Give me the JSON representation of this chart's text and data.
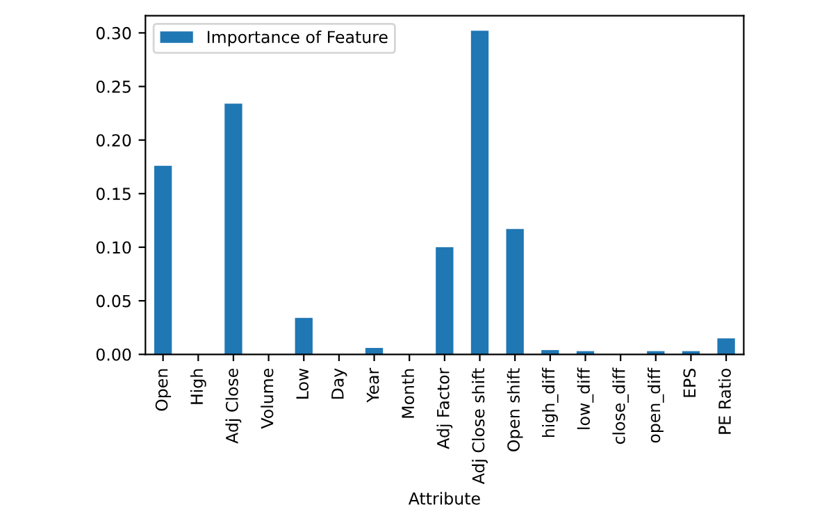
{
  "chart_data": {
    "type": "bar",
    "xlabel": "Attribute",
    "categories": [
      "Open",
      "High",
      "Adj Close",
      "Volume",
      "Low",
      "Day",
      "Year",
      "Month",
      "Adj Factor",
      "Adj Close shift",
      "Open shift",
      "high_diff",
      "low_diff",
      "close_diff",
      "open_diff",
      "EPS",
      "PE Ratio"
    ],
    "series": [
      {
        "name": "Importance of Feature",
        "color": "#1f77b4",
        "values": [
          0.176,
          0,
          0.234,
          0,
          0.034,
          0,
          0.006,
          0,
          0.1,
          0.302,
          0.117,
          0.004,
          0.003,
          0,
          0.003,
          0.003,
          0.015
        ]
      }
    ],
    "ylim": [
      0,
      0.316
    ],
    "yticks": [
      {
        "value": 0,
        "label": "0.00"
      },
      {
        "value": 0.05,
        "label": "0.05"
      },
      {
        "value": 0.1,
        "label": "0.10"
      },
      {
        "value": 0.15,
        "label": "0.15"
      },
      {
        "value": 0.2,
        "label": "0.20"
      },
      {
        "value": 0.25,
        "label": "0.25"
      },
      {
        "value": 0.3,
        "label": "0.30"
      }
    ],
    "legend": "top left",
    "grid": false
  }
}
